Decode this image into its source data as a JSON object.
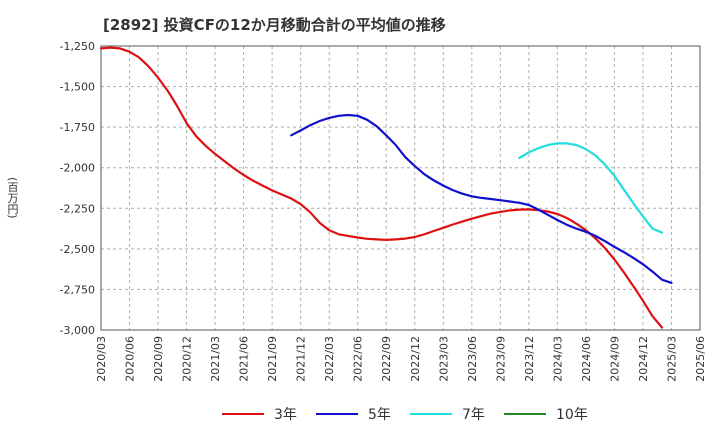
{
  "chart_data": {
    "type": "line",
    "title": "[2892]  投資CFの12か月移動合計の平均値の推移",
    "ylabel": "(百万円)",
    "xlabel": "",
    "ylim": [
      -3000,
      -1250
    ],
    "yticks": [
      -1250,
      -1500,
      -1750,
      -2000,
      -2250,
      -2500,
      -2750,
      -3000
    ],
    "ytick_labels": [
      "-1,250",
      "-1,500",
      "-1,750",
      "-2,000",
      "-2,250",
      "-2,500",
      "-2,750",
      "-3,000"
    ],
    "xlim": [
      "2020-03",
      "2025-06"
    ],
    "xticks": [
      "2020/03",
      "2020/06",
      "2020/09",
      "2020/12",
      "2021/03",
      "2021/06",
      "2021/09",
      "2021/12",
      "2022/03",
      "2022/06",
      "2022/09",
      "2022/12",
      "2023/03",
      "2023/06",
      "2023/09",
      "2023/12",
      "2024/03",
      "2024/06",
      "2024/09",
      "2024/12",
      "2025/03",
      "2025/06"
    ],
    "grid": true,
    "legend_position": "bottom",
    "series": [
      {
        "name": "3年",
        "color": "#dd1111",
        "points": [
          [
            "2020-03",
            -1265
          ],
          [
            "2020-04",
            -1260
          ],
          [
            "2020-05",
            -1265
          ],
          [
            "2020-06",
            -1285
          ],
          [
            "2020-07",
            -1320
          ],
          [
            "2020-08",
            -1375
          ],
          [
            "2020-09",
            -1445
          ],
          [
            "2020-10",
            -1525
          ],
          [
            "2020-11",
            -1620
          ],
          [
            "2020-12",
            -1725
          ],
          [
            "2021-01",
            -1805
          ],
          [
            "2021-02",
            -1865
          ],
          [
            "2021-03",
            -1915
          ],
          [
            "2021-04",
            -1960
          ],
          [
            "2021-05",
            -2005
          ],
          [
            "2021-06",
            -2045
          ],
          [
            "2021-07",
            -2080
          ],
          [
            "2021-08",
            -2110
          ],
          [
            "2021-09",
            -2140
          ],
          [
            "2021-10",
            -2165
          ],
          [
            "2021-11",
            -2190
          ],
          [
            "2021-12",
            -2225
          ],
          [
            "2022-01",
            -2275
          ],
          [
            "2022-02",
            -2340
          ],
          [
            "2022-03",
            -2385
          ],
          [
            "2022-04",
            -2410
          ],
          [
            "2022-05",
            -2420
          ],
          [
            "2022-06",
            -2430
          ],
          [
            "2022-07",
            -2438
          ],
          [
            "2022-08",
            -2442
          ],
          [
            "2022-09",
            -2445
          ],
          [
            "2022-10",
            -2442
          ],
          [
            "2022-11",
            -2437
          ],
          [
            "2022-12",
            -2427
          ],
          [
            "2023-01",
            -2410
          ],
          [
            "2023-02",
            -2390
          ],
          [
            "2023-03",
            -2370
          ],
          [
            "2023-04",
            -2350
          ],
          [
            "2023-05",
            -2332
          ],
          [
            "2023-06",
            -2314
          ],
          [
            "2023-07",
            -2298
          ],
          [
            "2023-08",
            -2283
          ],
          [
            "2023-09",
            -2272
          ],
          [
            "2023-10",
            -2263
          ],
          [
            "2023-11",
            -2258
          ],
          [
            "2023-12",
            -2257
          ],
          [
            "2024-01",
            -2262
          ],
          [
            "2024-02",
            -2270
          ],
          [
            "2024-03",
            -2285
          ],
          [
            "2024-04",
            -2310
          ],
          [
            "2024-05",
            -2345
          ],
          [
            "2024-06",
            -2385
          ],
          [
            "2024-07",
            -2435
          ],
          [
            "2024-08",
            -2495
          ],
          [
            "2024-09",
            -2565
          ],
          [
            "2024-10",
            -2645
          ],
          [
            "2024-11",
            -2730
          ],
          [
            "2024-12",
            -2820
          ],
          [
            "2025-01",
            -2915
          ],
          [
            "2025-02",
            -2985
          ]
        ]
      },
      {
        "name": "5年",
        "color": "#1111cc",
        "points": [
          [
            "2021-11",
            -1800
          ],
          [
            "2021-12",
            -1770
          ],
          [
            "2022-01",
            -1738
          ],
          [
            "2022-02",
            -1712
          ],
          [
            "2022-03",
            -1693
          ],
          [
            "2022-04",
            -1680
          ],
          [
            "2022-05",
            -1675
          ],
          [
            "2022-06",
            -1680
          ],
          [
            "2022-07",
            -1705
          ],
          [
            "2022-08",
            -1745
          ],
          [
            "2022-09",
            -1800
          ],
          [
            "2022-10",
            -1860
          ],
          [
            "2022-11",
            -1935
          ],
          [
            "2022-12",
            -1990
          ],
          [
            "2023-01",
            -2040
          ],
          [
            "2023-02",
            -2078
          ],
          [
            "2023-03",
            -2110
          ],
          [
            "2023-04",
            -2138
          ],
          [
            "2023-05",
            -2160
          ],
          [
            "2023-06",
            -2176
          ],
          [
            "2023-07",
            -2186
          ],
          [
            "2023-08",
            -2193
          ],
          [
            "2023-09",
            -2200
          ],
          [
            "2023-10",
            -2208
          ],
          [
            "2023-11",
            -2216
          ],
          [
            "2023-12",
            -2230
          ],
          [
            "2024-01",
            -2258
          ],
          [
            "2024-02",
            -2290
          ],
          [
            "2024-03",
            -2322
          ],
          [
            "2024-04",
            -2352
          ],
          [
            "2024-05",
            -2375
          ],
          [
            "2024-06",
            -2395
          ],
          [
            "2024-07",
            -2420
          ],
          [
            "2024-08",
            -2452
          ],
          [
            "2024-09",
            -2488
          ],
          [
            "2024-10",
            -2520
          ],
          [
            "2024-11",
            -2556
          ],
          [
            "2024-12",
            -2595
          ],
          [
            "2025-01",
            -2640
          ],
          [
            "2025-02",
            -2690
          ],
          [
            "2025-03",
            -2710
          ]
        ]
      },
      {
        "name": "7年",
        "color": "#22dddd",
        "points": [
          [
            "2023-11",
            -1940
          ],
          [
            "2023-12",
            -1905
          ],
          [
            "2024-01",
            -1880
          ],
          [
            "2024-02",
            -1860
          ],
          [
            "2024-03",
            -1850
          ],
          [
            "2024-04",
            -1850
          ],
          [
            "2024-05",
            -1860
          ],
          [
            "2024-06",
            -1885
          ],
          [
            "2024-07",
            -1925
          ],
          [
            "2024-08",
            -1980
          ],
          [
            "2024-09",
            -2050
          ],
          [
            "2024-10",
            -2135
          ],
          [
            "2024-11",
            -2220
          ],
          [
            "2024-12",
            -2300
          ],
          [
            "2025-01",
            -2375
          ],
          [
            "2025-02",
            -2400
          ]
        ]
      },
      {
        "name": "10年",
        "color": "#228822",
        "points": []
      }
    ]
  }
}
